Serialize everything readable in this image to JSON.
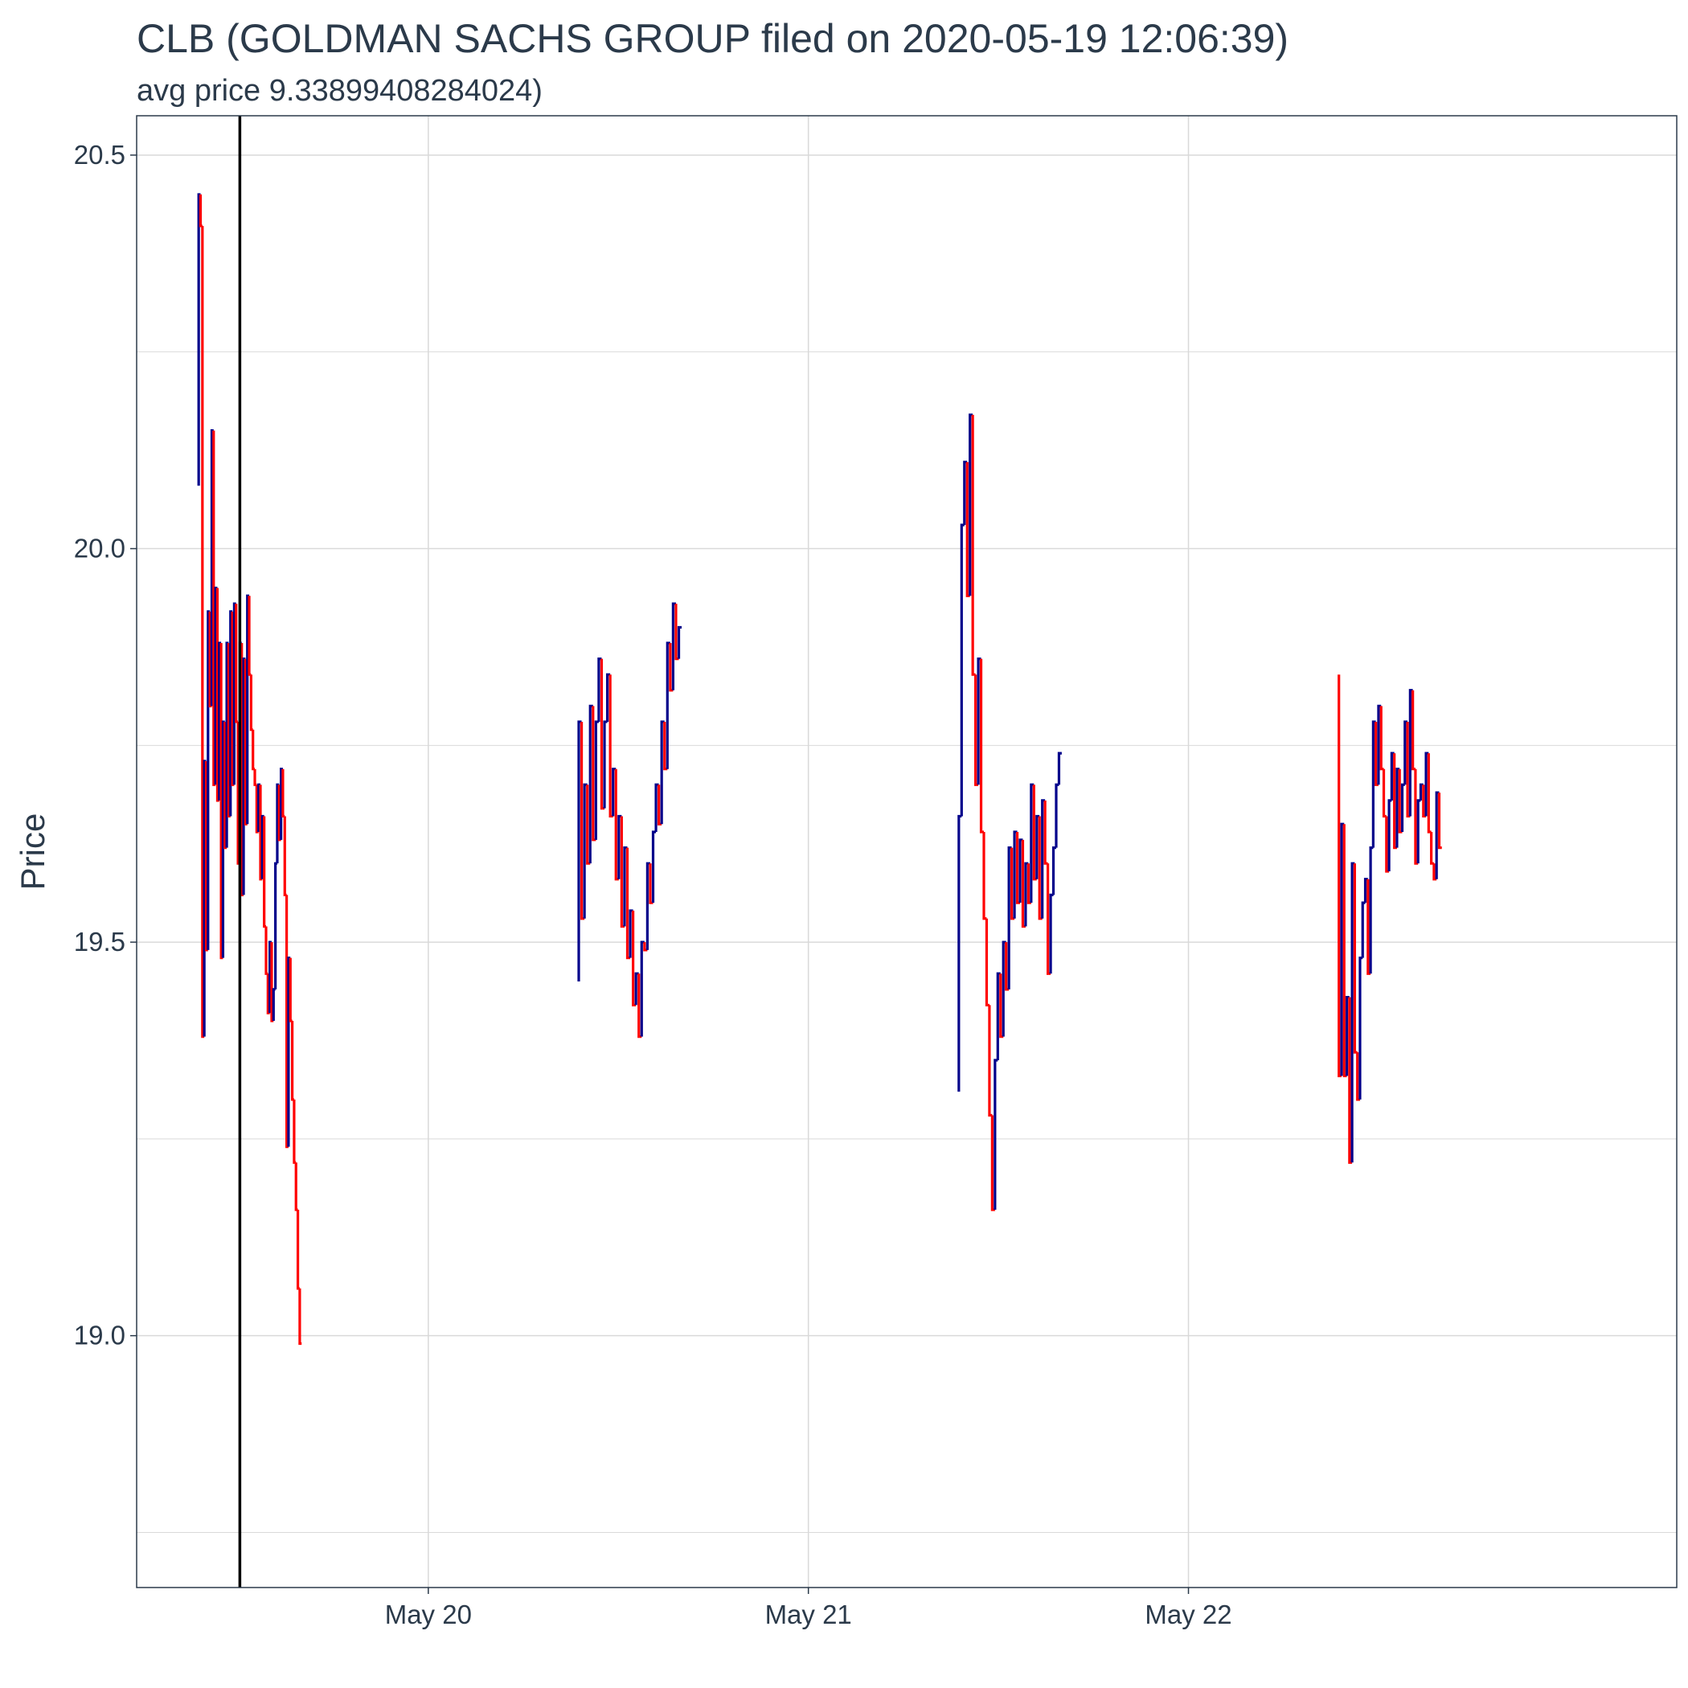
{
  "chart_data": {
    "type": "line",
    "title": "CLB (GOLDMAN SACHS GROUP filed on 2020-05-19 12:06:39)",
    "subtitle": "avg price 9.33899408284024)",
    "ylabel": "Price",
    "xlabel": "",
    "ylim": [
      18.68,
      20.55
    ],
    "xlim": [
      "2020-05-19 05:35",
      "2020-05-23 06:50"
    ],
    "y_ticks": [
      19.0,
      19.5,
      20.0,
      20.5
    ],
    "y_tick_labels": [
      "19.0",
      "19.5",
      "20.0",
      "20.5"
    ],
    "x_ticks": [
      "2020-05-20 00:00",
      "2020-05-21 00:00",
      "2020-05-22 00:00"
    ],
    "x_tick_labels": [
      "May 20",
      "May 21",
      "May 22"
    ],
    "grid": true,
    "legend": "none",
    "colors": {
      "up": "#00008b",
      "down": "#ff0000",
      "event_line": "#000000",
      "grid": "#d9d9d9",
      "text": "#2b3a4a"
    },
    "event_line_x": "2020-05-19 12:06",
    "sessions": [
      {
        "day": "2020-05-19",
        "start": "2020-05-19 09:30",
        "end": "2020-05-19 16:00",
        "prices": [
          20.08,
          20.45,
          20.41,
          19.38,
          19.73,
          19.49,
          19.92,
          19.8,
          20.15,
          19.7,
          19.95,
          19.68,
          19.88,
          19.48,
          19.78,
          19.62,
          19.88,
          19.66,
          19.92,
          19.7,
          19.93,
          19.78,
          19.6,
          19.88,
          19.56,
          19.86,
          19.65,
          19.94,
          19.84,
          19.77,
          19.72,
          19.7,
          19.64,
          19.7,
          19.58,
          19.66,
          19.52,
          19.46,
          19.41,
          19.5,
          19.4,
          19.44,
          19.6,
          19.7,
          19.63,
          19.72,
          19.66,
          19.56,
          19.24,
          19.48,
          19.4,
          19.3,
          19.22,
          19.16,
          19.06,
          18.99
        ]
      },
      {
        "day": "2020-05-20",
        "start": "2020-05-20 09:30",
        "end": "2020-05-20 16:00",
        "prices": [
          19.45,
          19.78,
          19.53,
          19.7,
          19.6,
          19.8,
          19.63,
          19.78,
          19.86,
          19.67,
          19.78,
          19.84,
          19.66,
          19.72,
          19.58,
          19.66,
          19.52,
          19.62,
          19.48,
          19.54,
          19.42,
          19.46,
          19.38,
          19.5,
          19.49,
          19.6,
          19.55,
          19.64,
          19.7,
          19.65,
          19.78,
          19.72,
          19.88,
          19.82,
          19.93,
          19.86,
          19.9
        ]
      },
      {
        "day": "2020-05-21",
        "start": "2020-05-21 09:30",
        "end": "2020-05-21 16:00",
        "prices": [
          19.31,
          19.66,
          20.03,
          20.11,
          19.94,
          20.17,
          19.84,
          19.7,
          19.86,
          19.64,
          19.53,
          19.42,
          19.28,
          19.16,
          19.35,
          19.46,
          19.38,
          19.5,
          19.44,
          19.62,
          19.53,
          19.64,
          19.55,
          19.63,
          19.52,
          19.6,
          19.55,
          19.7,
          19.58,
          19.66,
          19.53,
          19.68,
          19.6,
          19.46,
          19.56,
          19.62,
          19.7,
          19.74
        ]
      },
      {
        "day": "2020-05-22",
        "start": "2020-05-22 09:30",
        "end": "2020-05-22 16:00",
        "prices": [
          19.84,
          19.33,
          19.65,
          19.33,
          19.43,
          19.22,
          19.6,
          19.36,
          19.3,
          19.48,
          19.55,
          19.58,
          19.46,
          19.62,
          19.78,
          19.7,
          19.8,
          19.72,
          19.66,
          19.59,
          19.68,
          19.74,
          19.62,
          19.72,
          19.64,
          19.7,
          19.78,
          19.66,
          19.82,
          19.72,
          19.6,
          19.68,
          19.7,
          19.66,
          19.74,
          19.64,
          19.6,
          19.58,
          19.69,
          19.62
        ]
      }
    ]
  }
}
